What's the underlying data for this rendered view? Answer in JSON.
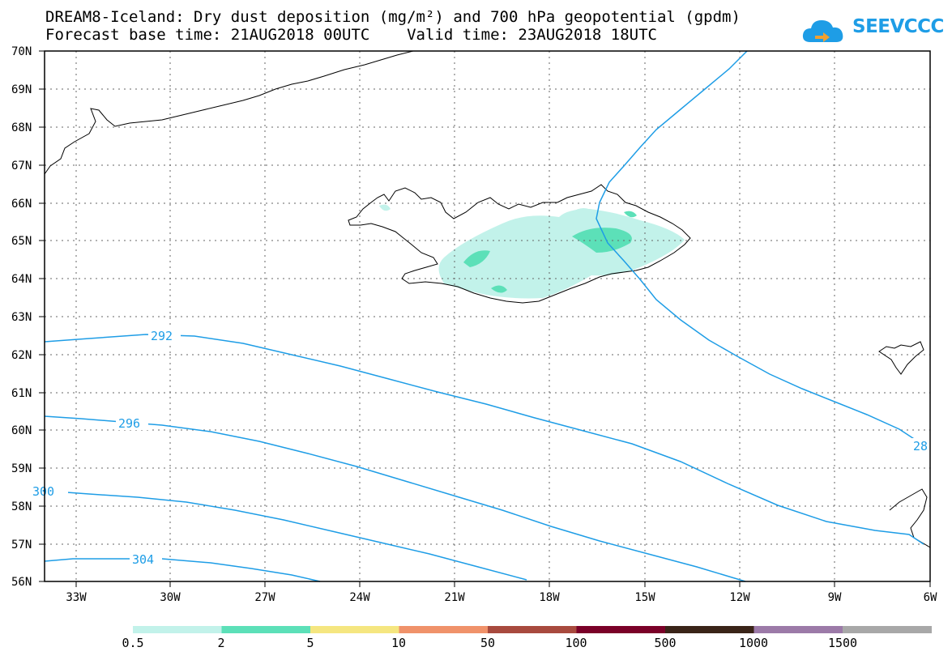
{
  "title": {
    "line1": "DREAM8-Iceland: Dry dust deposition (mg/m²) and 700 hPa geopotential (gpdm)",
    "line2": "Forecast base time: 21AUG2018 00UTC    Valid time: 23AUG2018 18UTC"
  },
  "logo": {
    "text": "SEEVCCC",
    "icon": "cloud-icon"
  },
  "map": {
    "lat_labels": [
      "70N",
      "69N",
      "68N",
      "67N",
      "66N",
      "65N",
      "64N",
      "63N",
      "62N",
      "61N",
      "60N",
      "59N",
      "58N",
      "57N",
      "56N"
    ],
    "lon_labels": [
      "33W",
      "30W",
      "27W",
      "24W",
      "21W",
      "18W",
      "15W",
      "12W",
      "9W",
      "6W"
    ],
    "lat_range": [
      56,
      70
    ],
    "lon_range": [
      -34.2,
      -6
    ],
    "gridlines": true
  },
  "contours": [
    {
      "value": "292",
      "color": "#1e9de6"
    },
    {
      "value": "296",
      "color": "#1e9de6"
    },
    {
      "value": "300",
      "color": "#1e9de6"
    },
    {
      "value": "304",
      "color": "#1e9de6"
    },
    {
      "value": "28",
      "color": "#1e9de6"
    }
  ],
  "legend": {
    "colors": [
      "#c2f2ea",
      "#5ce0b8",
      "#f5e680",
      "#f0926a",
      "#a84a3e",
      "#7a0028",
      "#3a2418",
      "#9c7aa8",
      "#a8a8a8"
    ],
    "labels": [
      "0.5",
      "2",
      "5",
      "10",
      "50",
      "100",
      "500",
      "1000",
      "1500"
    ]
  }
}
